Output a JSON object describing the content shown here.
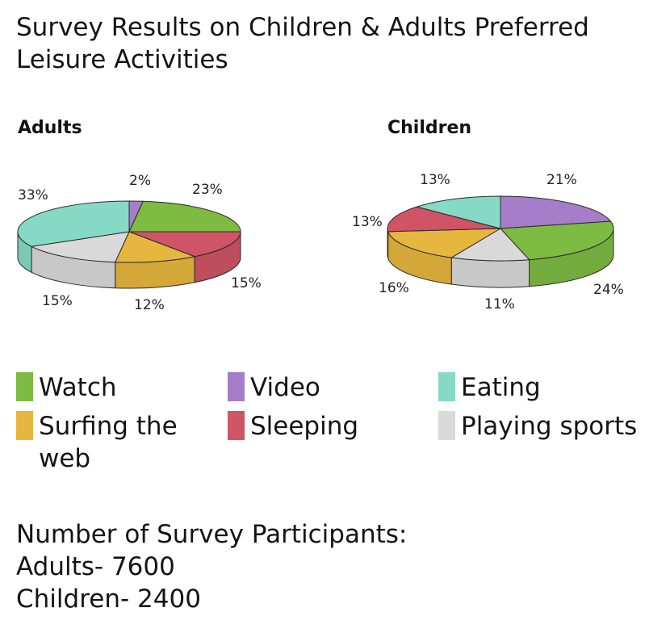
{
  "title": "Survey Results on Children & Adults Preferred Leisure Activities",
  "chart_data": {
    "type": "pie",
    "colors": {
      "Watch": "#7dbb42",
      "Video": "#a57dc8",
      "Eating": "#86dac5",
      "Surfing the web": "#e6b63e",
      "Sleeping": "#cf5466",
      "Playing sports": "#d9d9d9"
    },
    "charts": [
      {
        "title": "Adults",
        "slices": [
          {
            "label": "Video",
            "value": 2,
            "text": "2%"
          },
          {
            "label": "Watch",
            "value": 23,
            "text": "23%"
          },
          {
            "label": "Sleeping",
            "value": 15,
            "text": "15%"
          },
          {
            "label": "Surfing the web",
            "value": 12,
            "text": "12%"
          },
          {
            "label": "Playing sports",
            "value": 15,
            "text": "15%"
          },
          {
            "label": "Eating",
            "value": 33,
            "text": "33%"
          }
        ]
      },
      {
        "title": "Children",
        "slices": [
          {
            "label": "Video",
            "value": 21,
            "text": "21%"
          },
          {
            "label": "Watch",
            "value": 24,
            "text": "24%"
          },
          {
            "label": "Playing sports",
            "value": 11,
            "text": "11%"
          },
          {
            "label": "Surfing the web",
            "value": 16,
            "text": "16%"
          },
          {
            "label": "Sleeping",
            "value": 13,
            "text": "13%"
          },
          {
            "label": "Eating",
            "value": 13,
            "text": "13%"
          }
        ]
      }
    ]
  },
  "legend": [
    {
      "label": "Watch",
      "color": "#7dbb42"
    },
    {
      "label": "Video",
      "color": "#a57dc8"
    },
    {
      "label": "Eating",
      "color": "#86dac5"
    },
    {
      "label": "Surfing the web",
      "color": "#e6b63e"
    },
    {
      "label": "Sleeping",
      "color": "#cf5466"
    },
    {
      "label": "Playing sports",
      "color": "#d9d9d9"
    }
  ],
  "footer": {
    "heading": "Number of Survey Participants:",
    "adults": "Adults- 7600",
    "children": "Children- 2400"
  }
}
